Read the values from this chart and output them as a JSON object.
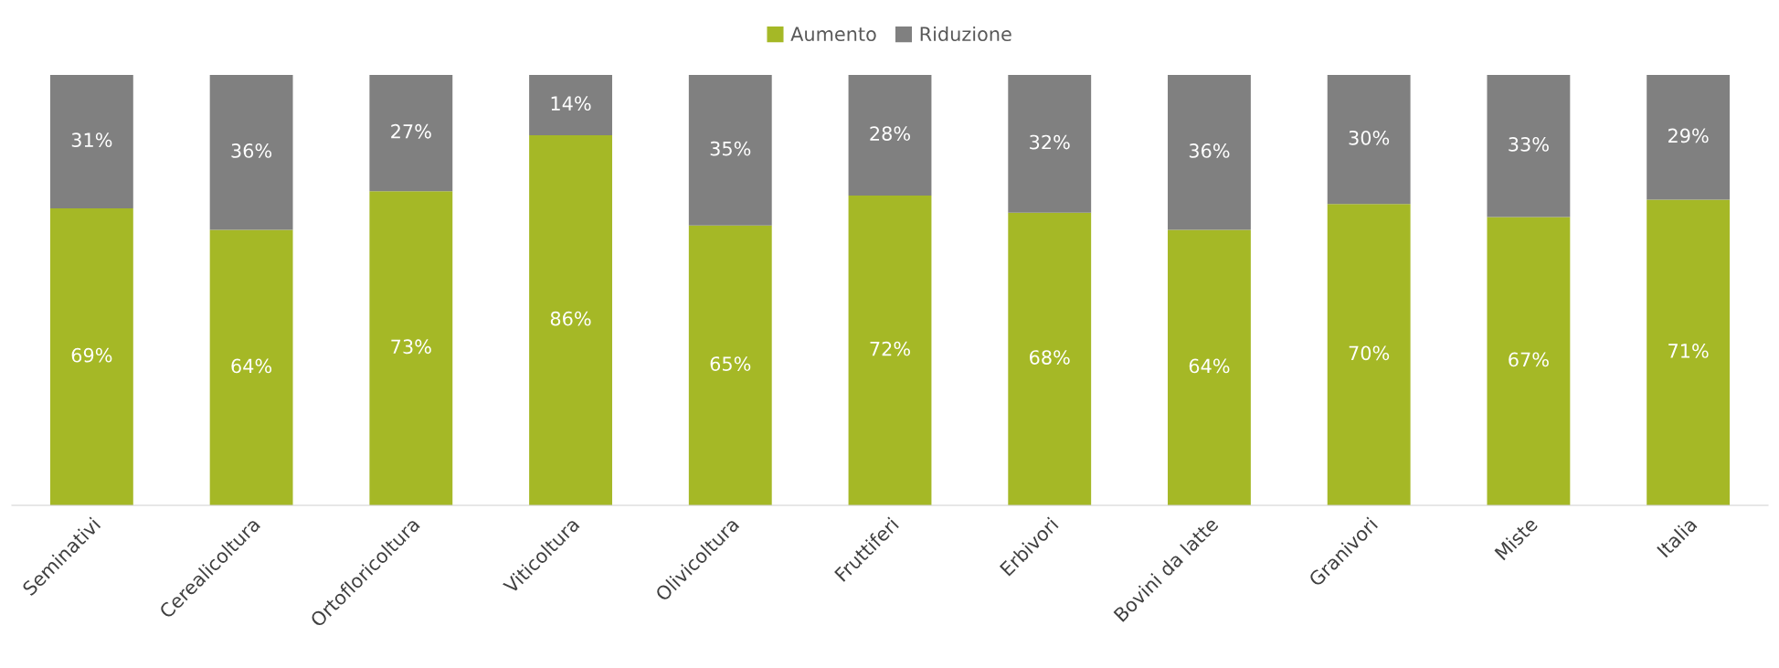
{
  "chart_data": {
    "type": "bar",
    "stacked": true,
    "legend": "top",
    "grid": false,
    "categories": [
      "Seminativi",
      "Cerealicoltura",
      "Ortofloricoltura",
      "Viticoltura",
      "Olivicoltura",
      "Fruttiferi",
      "Erbivori",
      "Bovini da latte",
      "Granivori",
      "Miste",
      "Italia"
    ],
    "series": [
      {
        "name": "Aumento",
        "color": "#a5b826",
        "values": [
          69,
          64,
          73,
          86,
          65,
          72,
          68,
          64,
          70,
          67,
          71
        ],
        "value_labels": [
          "69%",
          "64%",
          "73%",
          "86%",
          "65%",
          "72%",
          "68%",
          "64%",
          "70%",
          "67%",
          "71%"
        ]
      },
      {
        "name": "Riduzione",
        "color": "#808080",
        "values": [
          31,
          36,
          27,
          14,
          35,
          28,
          32,
          36,
          30,
          33,
          29
        ],
        "value_labels": [
          "31%",
          "36%",
          "27%",
          "14%",
          "35%",
          "28%",
          "32%",
          "36%",
          "30%",
          "33%",
          "29%"
        ]
      }
    ]
  }
}
